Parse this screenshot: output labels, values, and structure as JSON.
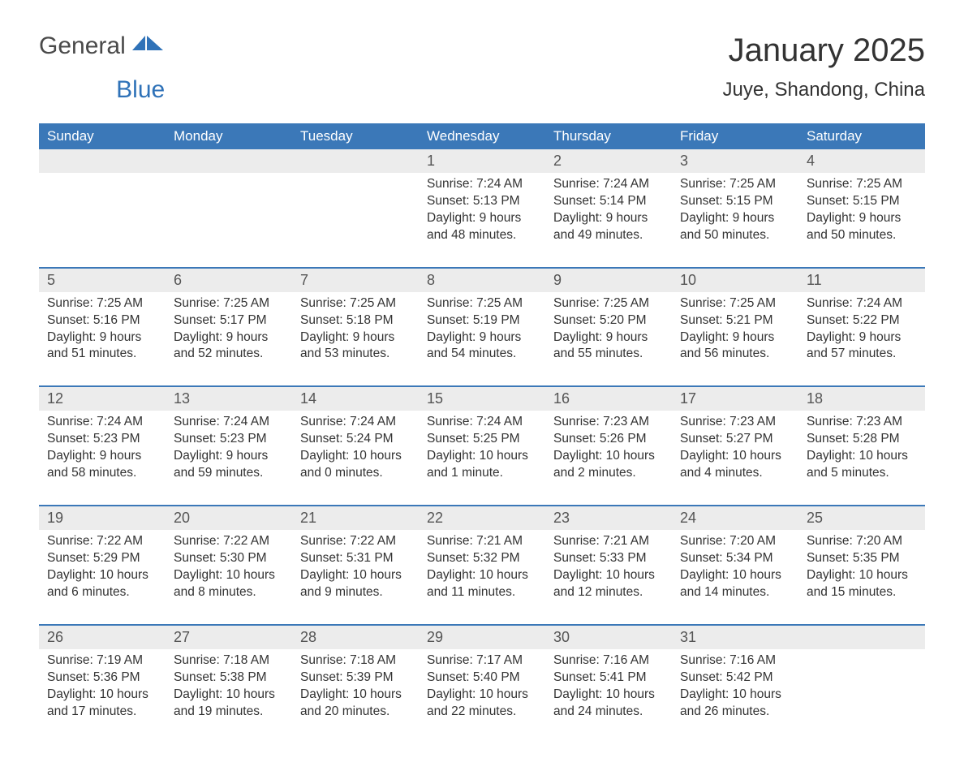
{
  "logo": {
    "word1": "General",
    "word2": "Blue"
  },
  "title": "January 2025",
  "subtitle": "Juye, Shandong, China",
  "colors": {
    "header_bg": "#3b78b8",
    "header_text": "#ffffff",
    "daynum_bg": "#ececec",
    "week_border": "#3b78b8",
    "body_text": "#333333",
    "title_text": "#333333",
    "logo_gray": "#4a4a4a",
    "logo_blue": "#2f72b8"
  },
  "weekdays": [
    "Sunday",
    "Monday",
    "Tuesday",
    "Wednesday",
    "Thursday",
    "Friday",
    "Saturday"
  ],
  "weeks": [
    [
      null,
      null,
      null,
      {
        "n": "1",
        "sunrise": "7:24 AM",
        "sunset": "5:13 PM",
        "dl1": "9 hours",
        "dl2": "48 minutes"
      },
      {
        "n": "2",
        "sunrise": "7:24 AM",
        "sunset": "5:14 PM",
        "dl1": "9 hours",
        "dl2": "49 minutes"
      },
      {
        "n": "3",
        "sunrise": "7:25 AM",
        "sunset": "5:15 PM",
        "dl1": "9 hours",
        "dl2": "50 minutes"
      },
      {
        "n": "4",
        "sunrise": "7:25 AM",
        "sunset": "5:15 PM",
        "dl1": "9 hours",
        "dl2": "50 minutes"
      }
    ],
    [
      {
        "n": "5",
        "sunrise": "7:25 AM",
        "sunset": "5:16 PM",
        "dl1": "9 hours",
        "dl2": "51 minutes"
      },
      {
        "n": "6",
        "sunrise": "7:25 AM",
        "sunset": "5:17 PM",
        "dl1": "9 hours",
        "dl2": "52 minutes"
      },
      {
        "n": "7",
        "sunrise": "7:25 AM",
        "sunset": "5:18 PM",
        "dl1": "9 hours",
        "dl2": "53 minutes"
      },
      {
        "n": "8",
        "sunrise": "7:25 AM",
        "sunset": "5:19 PM",
        "dl1": "9 hours",
        "dl2": "54 minutes"
      },
      {
        "n": "9",
        "sunrise": "7:25 AM",
        "sunset": "5:20 PM",
        "dl1": "9 hours",
        "dl2": "55 minutes"
      },
      {
        "n": "10",
        "sunrise": "7:25 AM",
        "sunset": "5:21 PM",
        "dl1": "9 hours",
        "dl2": "56 minutes"
      },
      {
        "n": "11",
        "sunrise": "7:24 AM",
        "sunset": "5:22 PM",
        "dl1": "9 hours",
        "dl2": "57 minutes"
      }
    ],
    [
      {
        "n": "12",
        "sunrise": "7:24 AM",
        "sunset": "5:23 PM",
        "dl1": "9 hours",
        "dl2": "58 minutes"
      },
      {
        "n": "13",
        "sunrise": "7:24 AM",
        "sunset": "5:23 PM",
        "dl1": "9 hours",
        "dl2": "59 minutes"
      },
      {
        "n": "14",
        "sunrise": "7:24 AM",
        "sunset": "5:24 PM",
        "dl1": "10 hours",
        "dl2": "0 minutes"
      },
      {
        "n": "15",
        "sunrise": "7:24 AM",
        "sunset": "5:25 PM",
        "dl1": "10 hours",
        "dl2": "1 minute"
      },
      {
        "n": "16",
        "sunrise": "7:23 AM",
        "sunset": "5:26 PM",
        "dl1": "10 hours",
        "dl2": "2 minutes"
      },
      {
        "n": "17",
        "sunrise": "7:23 AM",
        "sunset": "5:27 PM",
        "dl1": "10 hours",
        "dl2": "4 minutes"
      },
      {
        "n": "18",
        "sunrise": "7:23 AM",
        "sunset": "5:28 PM",
        "dl1": "10 hours",
        "dl2": "5 minutes"
      }
    ],
    [
      {
        "n": "19",
        "sunrise": "7:22 AM",
        "sunset": "5:29 PM",
        "dl1": "10 hours",
        "dl2": "6 minutes"
      },
      {
        "n": "20",
        "sunrise": "7:22 AM",
        "sunset": "5:30 PM",
        "dl1": "10 hours",
        "dl2": "8 minutes"
      },
      {
        "n": "21",
        "sunrise": "7:22 AM",
        "sunset": "5:31 PM",
        "dl1": "10 hours",
        "dl2": "9 minutes"
      },
      {
        "n": "22",
        "sunrise": "7:21 AM",
        "sunset": "5:32 PM",
        "dl1": "10 hours",
        "dl2": "11 minutes"
      },
      {
        "n": "23",
        "sunrise": "7:21 AM",
        "sunset": "5:33 PM",
        "dl1": "10 hours",
        "dl2": "12 minutes"
      },
      {
        "n": "24",
        "sunrise": "7:20 AM",
        "sunset": "5:34 PM",
        "dl1": "10 hours",
        "dl2": "14 minutes"
      },
      {
        "n": "25",
        "sunrise": "7:20 AM",
        "sunset": "5:35 PM",
        "dl1": "10 hours",
        "dl2": "15 minutes"
      }
    ],
    [
      {
        "n": "26",
        "sunrise": "7:19 AM",
        "sunset": "5:36 PM",
        "dl1": "10 hours",
        "dl2": "17 minutes"
      },
      {
        "n": "27",
        "sunrise": "7:18 AM",
        "sunset": "5:38 PM",
        "dl1": "10 hours",
        "dl2": "19 minutes"
      },
      {
        "n": "28",
        "sunrise": "7:18 AM",
        "sunset": "5:39 PM",
        "dl1": "10 hours",
        "dl2": "20 minutes"
      },
      {
        "n": "29",
        "sunrise": "7:17 AM",
        "sunset": "5:40 PM",
        "dl1": "10 hours",
        "dl2": "22 minutes"
      },
      {
        "n": "30",
        "sunrise": "7:16 AM",
        "sunset": "5:41 PM",
        "dl1": "10 hours",
        "dl2": "24 minutes"
      },
      {
        "n": "31",
        "sunrise": "7:16 AM",
        "sunset": "5:42 PM",
        "dl1": "10 hours",
        "dl2": "26 minutes"
      },
      null
    ]
  ],
  "labels": {
    "sunrise": "Sunrise: ",
    "sunset": "Sunset: ",
    "daylight": "Daylight: ",
    "and": "and ",
    "period": "."
  }
}
